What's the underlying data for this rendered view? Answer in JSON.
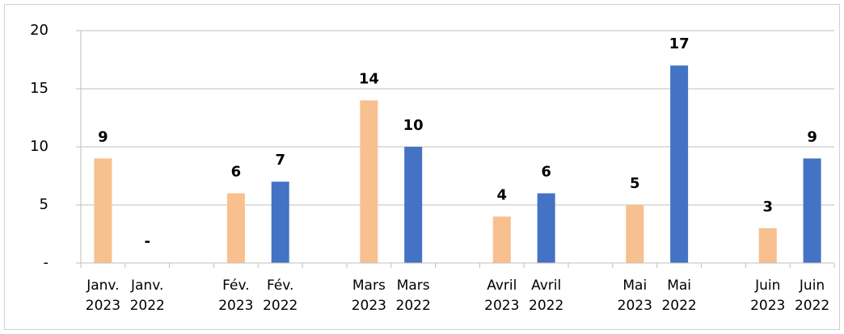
{
  "chart_data": {
    "type": "bar",
    "categories": [
      "Janv.\n2023",
      "Janv.\n2022",
      null,
      "Fév.\n2023",
      "Fév.\n2022",
      null,
      "Mars\n2023",
      "Mars\n2022",
      null,
      "Avril\n2023",
      "Avril\n2022",
      null,
      "Mai\n2023",
      "Mai\n2022",
      null,
      "Juin\n2023",
      "Juin\n2022"
    ],
    "values": [
      9,
      0,
      null,
      6,
      7,
      null,
      14,
      10,
      null,
      4,
      6,
      null,
      5,
      17,
      null,
      3,
      9
    ],
    "value_labels": [
      "9",
      "-",
      null,
      "6",
      "7",
      null,
      "14",
      "10",
      null,
      "4",
      "6",
      null,
      "5",
      "17",
      null,
      "3",
      "9"
    ],
    "colors": [
      "#f8c08e",
      "#4472c4",
      null,
      "#f8c08e",
      "#4472c4",
      null,
      "#f8c08e",
      "#4472c4",
      null,
      "#f8c08e",
      "#4472c4",
      null,
      "#f8c08e",
      "#4472c4",
      null,
      "#f8c08e",
      "#4472c4"
    ],
    "ylim": [
      0,
      20
    ],
    "yticks": [
      {
        "value": 0,
        "label": "-"
      },
      5,
      10,
      15,
      20
    ],
    "grid": true
  }
}
